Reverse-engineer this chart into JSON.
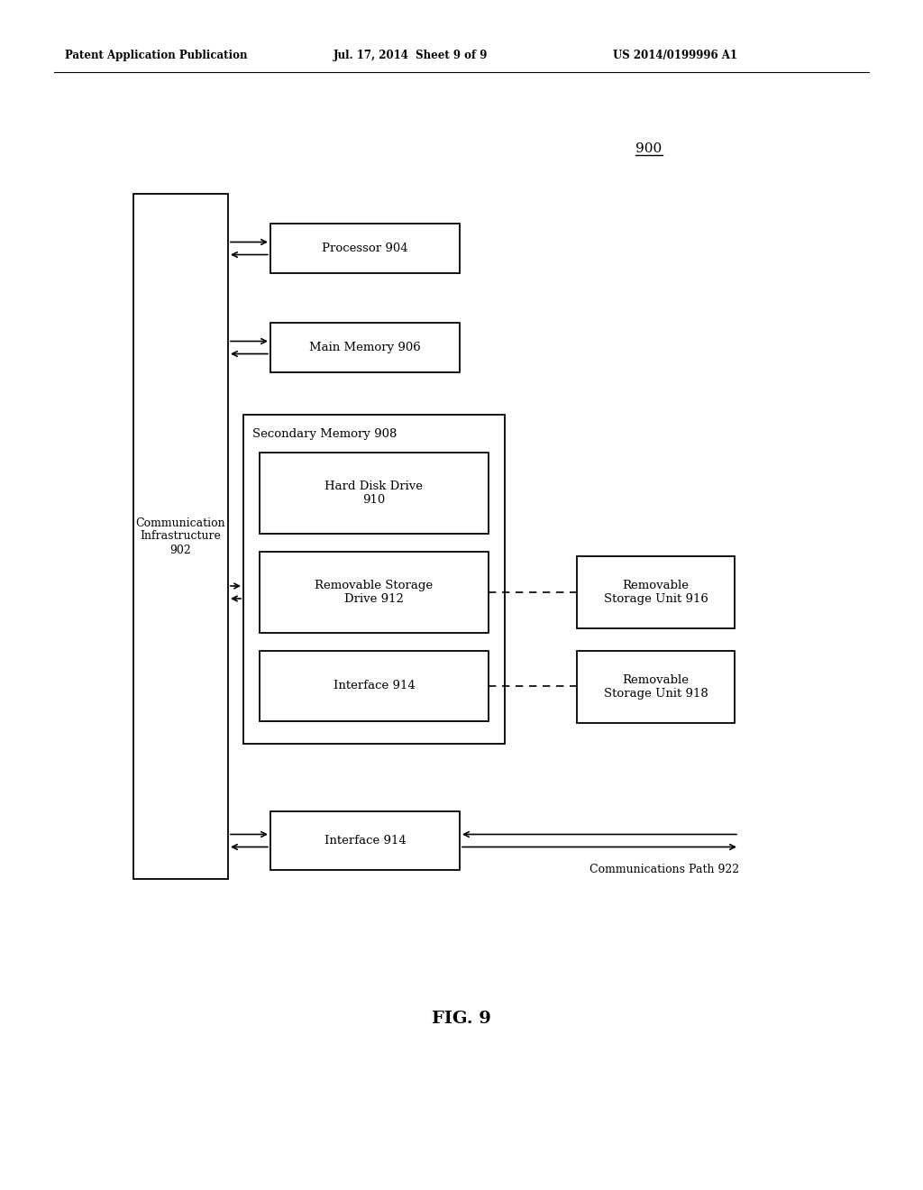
{
  "fig_width": 10.24,
  "fig_height": 13.2,
  "bg_color": "#ffffff",
  "header_left": "Patent Application Publication",
  "header_mid": "Jul. 17, 2014  Sheet 9 of 9",
  "header_right": "US 2014/0199996 A1",
  "fig_label": "FIG. 9",
  "diagram_label": "900",
  "comm_infra_label": "Communication\nInfrastructure\n902",
  "processor_label": "Processor 904",
  "main_memory_label": "Main Memory 906",
  "secondary_memory_label": "Secondary Memory 908",
  "hard_disk_label": "Hard Disk Drive\n910",
  "removable_storage_drive_label": "Removable Storage\nDrive 912",
  "interface_inner_label": "Interface 914",
  "removable_storage_unit1_label": "Removable\nStorage Unit 916",
  "removable_storage_unit2_label": "Removable\nStorage Unit 918",
  "interface_outer_label": "Interface 914",
  "comm_path_label": "Communications Path 922",
  "line_color": "#000000",
  "box_fill": "#ffffff",
  "text_color": "#000000"
}
